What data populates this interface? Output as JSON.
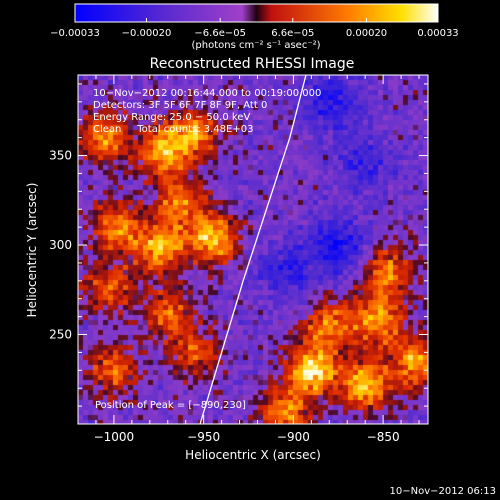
{
  "chart_data": {
    "type": "heatmap",
    "title": "Reconstructed RHESSI Image",
    "xlabel": "Heliocentric X (arcsec)",
    "ylabel": "Heliocentric Y (arcsec)",
    "xlim": [
      -1020,
      -825
    ],
    "ylim": [
      200,
      395
    ],
    "x_ticks": [
      -1000,
      -950,
      -900,
      -850
    ],
    "x_tick_labels": [
      "−1000",
      "−950",
      "−900",
      "−850"
    ],
    "y_ticks": [
      250,
      300,
      350
    ],
    "y_tick_labels": [
      "250",
      "300",
      "350"
    ],
    "colorbar": {
      "range": [
        -0.00033,
        0.00033
      ],
      "ticks": [
        -0.00033,
        -0.0002,
        -6.6e-05,
        6.6e-05,
        0.0002,
        0.00033
      ],
      "tick_labels": [
        "−0.00033",
        "−0.00020",
        "−6.6e−05",
        "6.6e−05",
        "0.00020",
        "0.00033"
      ],
      "unit_label": "(photons cm⁻² s⁻¹ asec⁻²)"
    },
    "annotations": [
      "10−Nov−2012 00:16:44.000 to 00:19:00.000",
      "Detectors: 3F 5F 6F 7F 8F 9F, Att 0",
      "Energy Range: 25.0 − 50.0 keV",
      "Clean     Total counts: 3.48E+03"
    ],
    "peak_label": "Position of Peak = [−890,230]",
    "peak": [
      -890,
      230
    ],
    "limb_curve": [
      [
        -952,
        200
      ],
      [
        -940,
        240
      ],
      [
        -928,
        280
      ],
      [
        -915,
        320
      ],
      [
        -902,
        360
      ],
      [
        -893,
        395
      ]
    ],
    "hot_spots": [
      {
        "x": -1005,
        "y": 360,
        "level": 0.78
      },
      {
        "x": -972,
        "y": 352,
        "level": 0.85
      },
      {
        "x": -955,
        "y": 363,
        "level": 0.72
      },
      {
        "x": -998,
        "y": 310,
        "level": 0.75
      },
      {
        "x": -963,
        "y": 323,
        "level": 0.72
      },
      {
        "x": -945,
        "y": 303,
        "level": 0.9
      },
      {
        "x": -975,
        "y": 298,
        "level": 0.8
      },
      {
        "x": -1003,
        "y": 276,
        "level": 0.62
      },
      {
        "x": -970,
        "y": 262,
        "level": 0.62
      },
      {
        "x": -1000,
        "y": 230,
        "level": 0.65
      },
      {
        "x": -955,
        "y": 240,
        "level": 0.58
      },
      {
        "x": -880,
        "y": 255,
        "level": 0.7
      },
      {
        "x": -848,
        "y": 285,
        "level": 0.72
      },
      {
        "x": -853,
        "y": 258,
        "level": 0.8
      },
      {
        "x": -890,
        "y": 230,
        "level": 0.98
      },
      {
        "x": -860,
        "y": 222,
        "level": 0.9
      },
      {
        "x": -832,
        "y": 235,
        "level": 0.82
      },
      {
        "x": -905,
        "y": 207,
        "level": 0.7
      }
    ],
    "cold_spots": [
      {
        "x": -880,
        "y": 380,
        "level": -0.5
      },
      {
        "x": -875,
        "y": 300,
        "level": -0.6
      },
      {
        "x": -905,
        "y": 285,
        "level": -0.45
      },
      {
        "x": -860,
        "y": 345,
        "level": -0.4
      }
    ],
    "background_level": 0.12,
    "grid": false
  },
  "footer": {
    "timestamp": "10−Nov−2012 06:13"
  }
}
